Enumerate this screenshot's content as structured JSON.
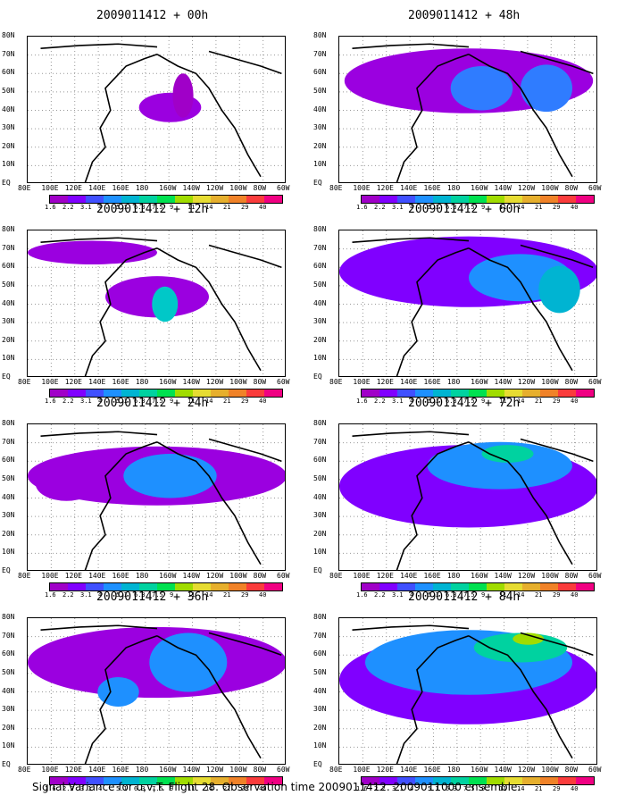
{
  "panels": [
    {
      "title": "2009011412 + 00h"
    },
    {
      "title": "2009011412 + 48h"
    },
    {
      "title": "2009011412 + 12h"
    },
    {
      "title": "2009011412 + 60h"
    },
    {
      "title": "2009011412 + 24h"
    },
    {
      "title": "2009011412 + 72h"
    },
    {
      "title": "2009011412 + 36h"
    },
    {
      "title": "2009011412 + 84h"
    }
  ],
  "lat_labels": [
    "80N",
    "70N",
    "60N",
    "50N",
    "40N",
    "30N",
    "20N",
    "10N",
    "EQ"
  ],
  "lon_labels": [
    "80E",
    "100E",
    "120E",
    "140E",
    "160E",
    "180",
    "160W",
    "140W",
    "120W",
    "100W",
    "80W",
    "60W"
  ],
  "colorbar": {
    "labels": [
      "1.6",
      "2.2",
      "3.1",
      "4",
      "5.1",
      "6.3",
      "7.5",
      "9",
      "11",
      "14",
      "21",
      "29",
      "40"
    ],
    "colors": [
      "#a000c8",
      "#8000ff",
      "#4050ff",
      "#1e90ff",
      "#00b4d2",
      "#00d2a0",
      "#00e150",
      "#a0dc00",
      "#e6dc32",
      "#e6af2d",
      "#f08228",
      "#fa3c3c",
      "#f00082"
    ]
  },
  "caption": "Signal Variance for u,v,T. Flight 28. Observation time 2009011412. 2009011000 ensemble."
}
